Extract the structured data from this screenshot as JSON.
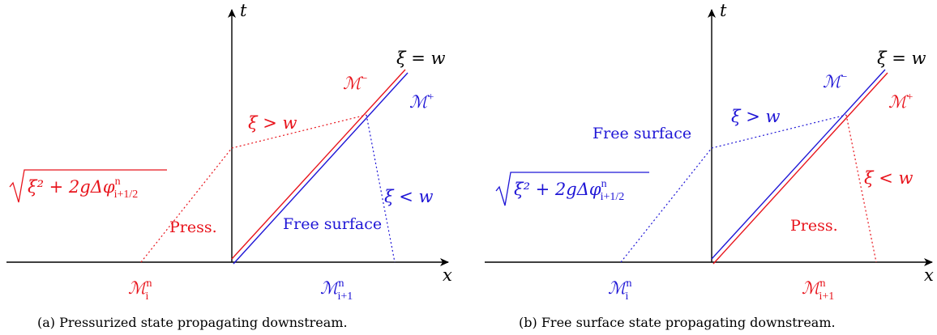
{
  "colors": {
    "red": "#e8141c",
    "blue": "#1f16d6",
    "black": "#000000"
  },
  "axes": {
    "t_label": "t",
    "x_label": "x"
  },
  "panels": [
    {
      "caption": "(a) Pressurized state propagating downstream.",
      "interface_label": "ξ = w",
      "m_upper": "−",
      "m_lower": "+",
      "xi_gt": "ξ > w",
      "xi_lt": "ξ < w",
      "sqrt_head": "ξ² + 2gΔφ",
      "sqrt_sup": "n",
      "sqrt_sub": "i+1/2",
      "left_region": "Press.",
      "right_region": "Free surface",
      "m_left_sup": "n",
      "m_left_sub": "i",
      "m_right_sup": "n",
      "m_right_sub": "i+1"
    },
    {
      "caption": "(b) Free surface state propagating downstream.",
      "interface_label": "ξ = w",
      "m_upper": "−",
      "m_lower": "+",
      "xi_gt": "ξ > w",
      "xi_lt": "ξ < w",
      "sqrt_head": "ξ² + 2gΔφ",
      "sqrt_sup": "n",
      "sqrt_sub": "i+1/2",
      "left_region": "Free surface",
      "right_region": "Press.",
      "m_left_sup": "n",
      "m_left_sub": "i",
      "m_right_sup": "n",
      "m_right_sub": "i+1"
    }
  ]
}
